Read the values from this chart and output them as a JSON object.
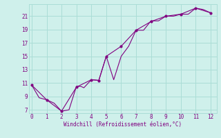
{
  "xlabel": "Windchill (Refroidissement éolien,°C)",
  "line1_x": [
    0,
    0.5,
    1,
    1.5,
    2,
    2.5,
    3,
    3.3,
    3.5,
    4,
    4.5,
    5,
    5.5,
    6,
    6.5,
    7,
    7.5,
    8,
    8.5,
    9,
    9.5,
    10,
    10.5,
    11,
    11.5,
    12
  ],
  "line1_y": [
    10.7,
    8.8,
    8.5,
    8.0,
    6.8,
    7.0,
    10.5,
    10.5,
    10.3,
    11.5,
    11.4,
    15.0,
    11.5,
    15.0,
    16.5,
    18.9,
    18.9,
    20.3,
    20.3,
    21.0,
    21.0,
    21.3,
    21.3,
    22.2,
    22.0,
    21.5
  ],
  "line2_x": [
    0,
    1,
    2,
    3,
    4,
    4.5,
    5,
    6,
    7,
    8,
    9,
    10,
    11,
    12
  ],
  "line2_y": [
    10.7,
    8.5,
    6.8,
    10.4,
    11.5,
    11.4,
    15.0,
    16.5,
    18.9,
    20.2,
    21.0,
    21.3,
    22.2,
    21.5
  ],
  "line_color": "#800080",
  "bg_color": "#cff0eb",
  "grid_color": "#aaddd6",
  "xlim": [
    -0.2,
    12.4
  ],
  "ylim": [
    6.5,
    22.8
  ],
  "xticks": [
    0,
    1,
    2,
    3,
    4,
    5,
    6,
    7,
    8,
    9,
    10,
    11,
    12
  ],
  "yticks": [
    7,
    9,
    11,
    13,
    15,
    17,
    19,
    21
  ]
}
